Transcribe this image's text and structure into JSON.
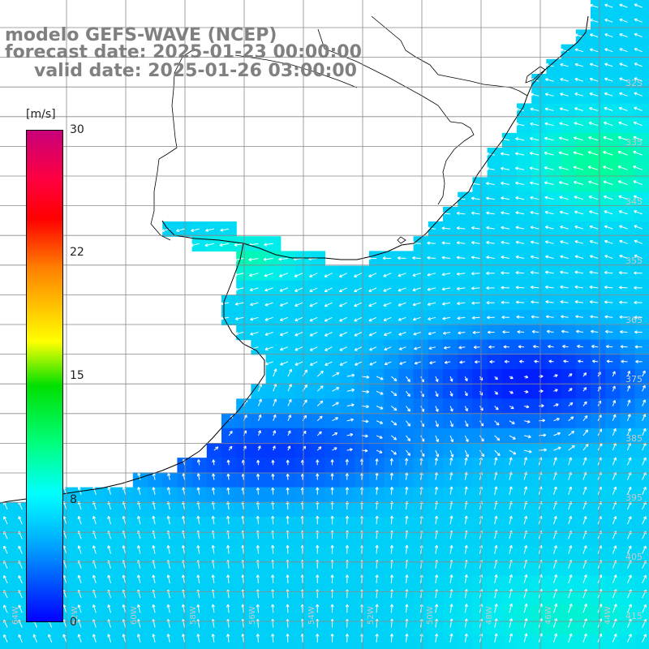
{
  "header": {
    "model": "modelo GEFS-WAVE (NCEP)",
    "forecast_date": "forecast date: 2025-01-23 00:00:00",
    "valid_date": "valid date: 2025-01-26 03:00:00"
  },
  "colorbar": {
    "unit": "[m/s]",
    "ticks": [
      "30",
      "22",
      "15",
      "8",
      "0"
    ],
    "min": 0,
    "max": 30,
    "colors": [
      "#0000ff",
      "#00b4ff",
      "#00ffff",
      "#00ff80",
      "#00e000",
      "#ffff00",
      "#ff8000",
      "#ff0000",
      "#c8007a"
    ]
  },
  "latitude_labels": [
    "32S",
    "335",
    "345",
    "355",
    "365",
    "375",
    "385",
    "395",
    "405",
    "415"
  ],
  "longitude_labels": [
    "64W",
    "62W",
    "60W",
    "58W",
    "56W",
    "54W",
    "52W",
    "50W",
    "48W",
    "46W",
    "44W"
  ],
  "colors": {
    "land": "#ffffff",
    "coast": "#000000",
    "grid": "#888888",
    "arrows": "#ffffff",
    "title_text": "#808080"
  }
}
